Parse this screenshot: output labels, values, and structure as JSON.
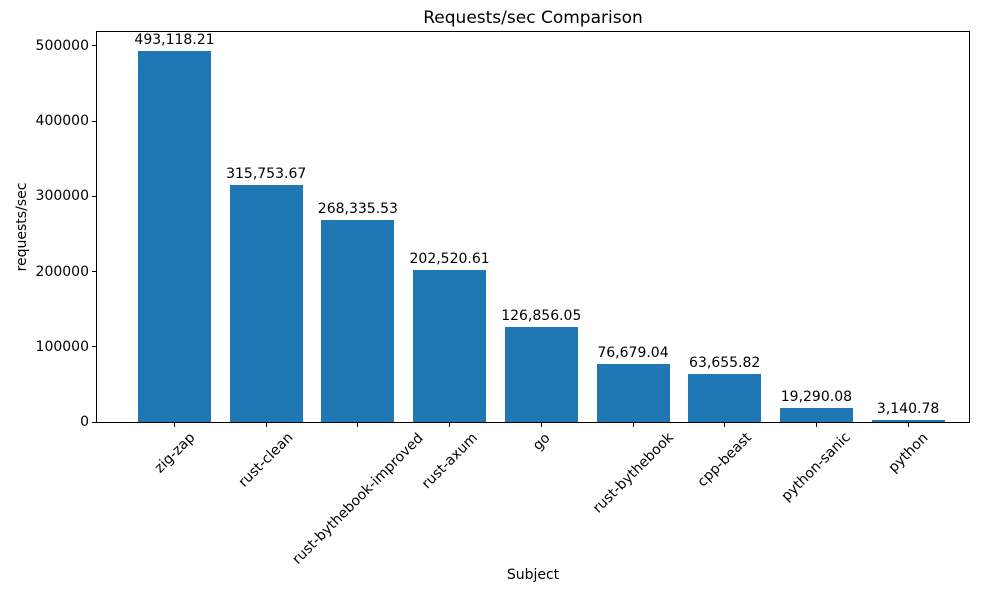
{
  "chart_data": {
    "type": "bar",
    "title": "Requests/sec Comparison",
    "xlabel": "Subject",
    "ylabel": "requests/sec",
    "categories": [
      "zig-zap",
      "rust-clean",
      "rust-bythebook-improved",
      "rust-axum",
      "go",
      "rust-bythebook",
      "cpp-beast",
      "python-sanic",
      "python"
    ],
    "values": [
      493118.21,
      315753.67,
      268335.53,
      202520.61,
      126856.05,
      76679.04,
      63655.82,
      19290.08,
      3140.78
    ],
    "value_labels": [
      "493,118.21",
      "315,753.67",
      "268,335.53",
      "202,520.61",
      "126,856.05",
      "76,679.04",
      "63,655.82",
      "19,290.08",
      "3,140.78"
    ],
    "yticks": [
      0,
      100000,
      200000,
      300000,
      400000,
      500000
    ],
    "ytick_labels": [
      "0",
      "100000",
      "200000",
      "300000",
      "400000",
      "500000"
    ],
    "ylim": [
      0,
      518600
    ],
    "bar_color": "#1f77b4",
    "grid": false,
    "legend": null,
    "x_tick_rotation_deg": 45
  }
}
